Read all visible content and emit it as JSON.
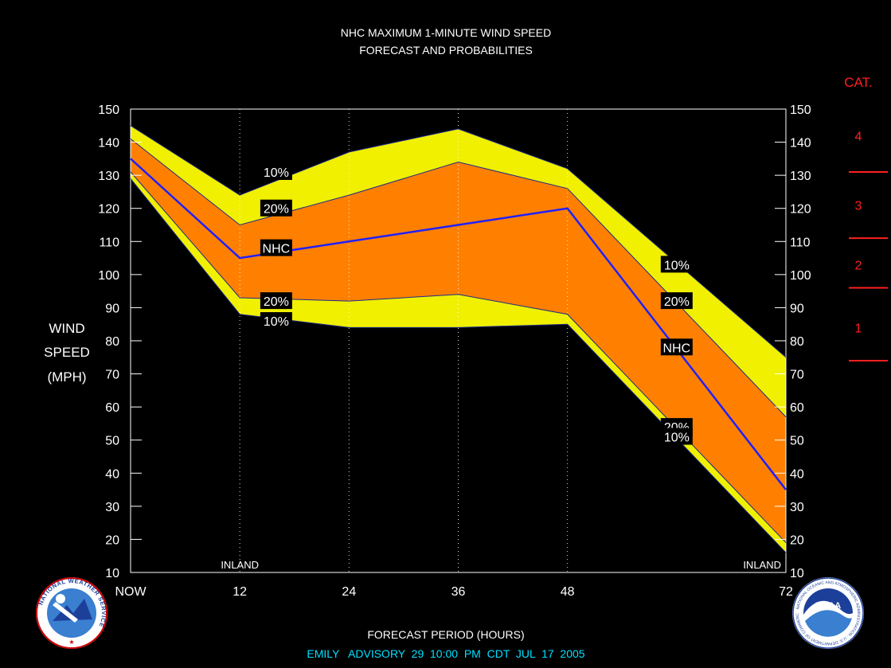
{
  "chart_data": {
    "type": "area",
    "title": "NHC MAXIMUM 1-MINUTE WIND SPEED",
    "subtitle": "FORECAST AND PROBABILITIES",
    "ylabel": [
      "WIND",
      "SPEED",
      "(MPH)"
    ],
    "xlabel": "FORECAST PERIOD (HOURS)",
    "x_ticks": [
      "NOW",
      "12",
      "24",
      "36",
      "48",
      "72"
    ],
    "x_tick_values": [
      0,
      12,
      24,
      36,
      48,
      72
    ],
    "xlim": [
      0,
      72
    ],
    "ylim": [
      10,
      150
    ],
    "y_ticks": [
      10,
      20,
      30,
      40,
      50,
      60,
      70,
      80,
      90,
      100,
      110,
      120,
      130,
      140,
      150
    ],
    "grid": "vertical dotted at 12, 24, 36, 48",
    "x": [
      0,
      12,
      24,
      36,
      48,
      72
    ],
    "series": [
      {
        "name": "10%",
        "role": "upper",
        "values": [
          145,
          124,
          137,
          144,
          132,
          75
        ]
      },
      {
        "name": "20%",
        "role": "upper",
        "values": [
          141,
          115,
          124,
          134,
          126,
          57
        ]
      },
      {
        "name": "NHC",
        "role": "forecast",
        "values": [
          135,
          105,
          110,
          115,
          120,
          35
        ]
      },
      {
        "name": "20%",
        "role": "lower",
        "values": [
          131,
          93,
          92,
          94,
          88,
          19
        ]
      },
      {
        "name": "10%",
        "role": "lower",
        "values": [
          129,
          88,
          84,
          84,
          85,
          16
        ]
      }
    ],
    "band_labels": [
      {
        "text": "10%",
        "x": 16,
        "y": 131
      },
      {
        "text": "20%",
        "x": 16,
        "y": 120
      },
      {
        "text": "NHC",
        "x": 16,
        "y": 108
      },
      {
        "text": "20%",
        "x": 16,
        "y": 92
      },
      {
        "text": "10%",
        "x": 16,
        "y": 86
      },
      {
        "text": "10%",
        "x": 60,
        "y": 103
      },
      {
        "text": "20%",
        "x": 60,
        "y": 92
      },
      {
        "text": "NHC",
        "x": 60,
        "y": 78
      },
      {
        "text": "20%",
        "x": 60,
        "y": 54
      },
      {
        "text": "10%",
        "x": 60,
        "y": 51
      }
    ],
    "annotations": [
      {
        "text": "INLAND",
        "x": 12
      },
      {
        "text": "INLAND",
        "x": 72
      }
    ],
    "categories_scale": {
      "header": "CAT.",
      "labels": [
        {
          "text": "4",
          "y": 142
        },
        {
          "text": "3",
          "y": 121
        },
        {
          "text": "2",
          "y": 103
        },
        {
          "text": "1",
          "y": 84
        }
      ],
      "boundaries": [
        131,
        111,
        96,
        74
      ]
    },
    "colors": {
      "outer_band": "#f0f000",
      "inner_band": "#ff8000",
      "forecast_line": "#2020ff",
      "category_text": "#ff2020",
      "footer_text": "#00e0ff"
    }
  },
  "footer": "EMILY   ADVISORY  29  10:00  PM  CDT  JUL  17  2005",
  "logos": {
    "left": "NATIONAL WEATHER SERVICE",
    "right": "NOAA",
    "right_ring": "NATIONAL OCEANIC AND ATMOSPHERIC ADMINISTRATION · U.S. DEPARTMENT OF COMMERCE"
  }
}
